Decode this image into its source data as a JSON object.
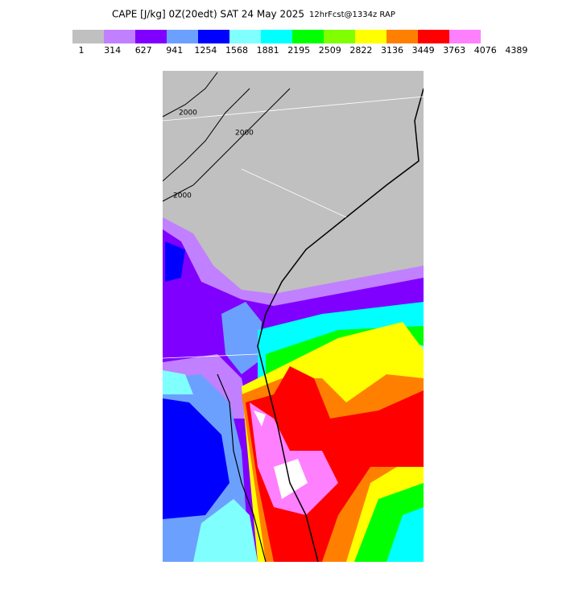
{
  "header": {
    "title": "CAPE [J/kg] 0Z(20edt) SAT 24 May 2025",
    "subtitle": "12hrFcst@1334z RAP"
  },
  "colorbar": {
    "colors": [
      "#c0c0c0",
      "#c080ff",
      "#8000ff",
      "#6ca0ff",
      "#0000ff",
      "#80ffff",
      "#00ffff",
      "#00ff00",
      "#80ff00",
      "#ffff00",
      "#ff8000",
      "#ff0000",
      "#ff80ff"
    ],
    "labels": [
      1,
      314,
      627,
      941,
      1254,
      1568,
      1881,
      2195,
      2509,
      2822,
      3136,
      3449,
      3763,
      4076,
      4389
    ]
  },
  "map": {
    "contour_labels": [
      2000,
      2000,
      2000
    ]
  }
}
